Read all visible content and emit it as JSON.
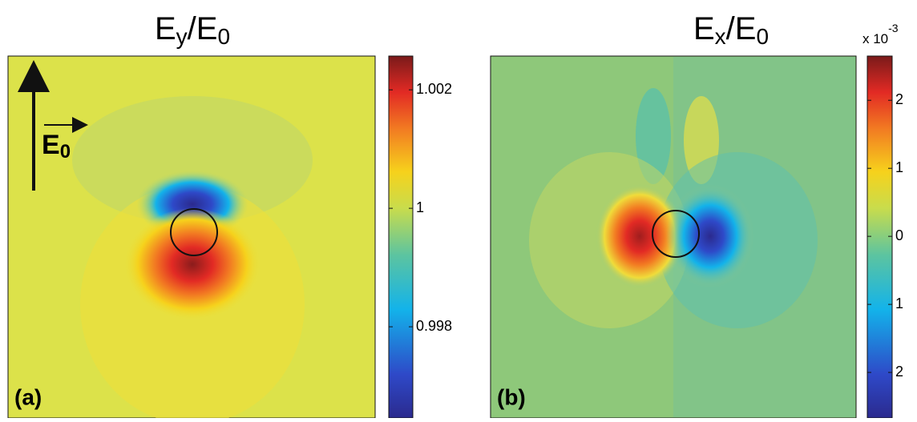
{
  "chart_data": [
    {
      "type": "heatmap",
      "title": {
        "symbol": "E",
        "sub": "y",
        "divisor": "/E",
        "divisor_sub": "0"
      },
      "panel_label": "(a)",
      "field_label": {
        "symbol": "E",
        "sub": "0"
      },
      "clim": [
        0.99646,
        1.00257
      ],
      "cticks": [
        0.998,
        1,
        1.002
      ]
    },
    {
      "type": "heatmap",
      "title": {
        "symbol": "E",
        "sub": "x",
        "divisor": "/E",
        "divisor_sub": "0"
      },
      "panel_label": "(b)",
      "colorbar_multiplier": {
        "base": "x 10",
        "exponent": "-3"
      },
      "clim": [
        -2.67,
        2.65
      ],
      "cticks": [
        {
          "value": -2,
          "label": "2"
        },
        {
          "value": -1,
          "label": "1"
        },
        0,
        1,
        2
      ]
    }
  ]
}
